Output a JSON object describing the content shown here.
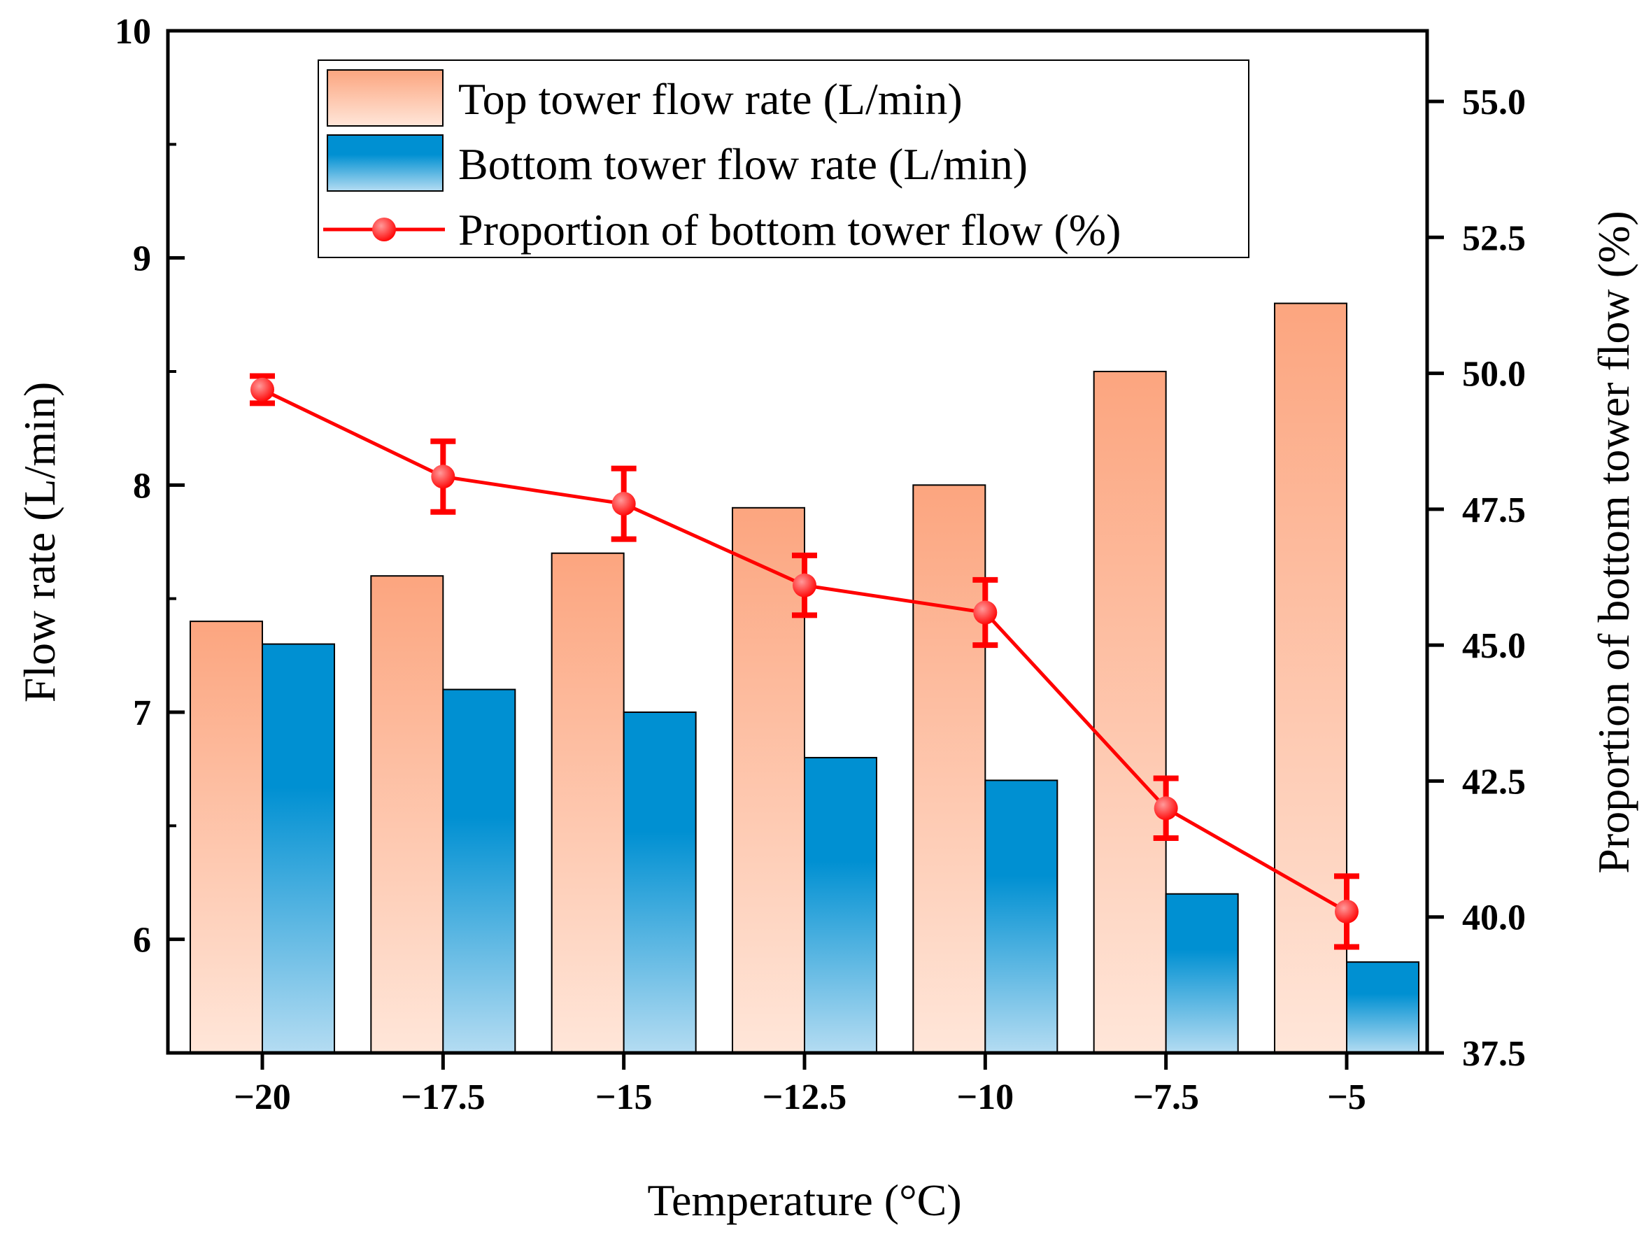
{
  "chart_data": {
    "type": "bar",
    "title": "",
    "xlabel": "Temperature (°C)",
    "ylabel": "Flow rate (L/min)",
    "y2label": "Proportion of bottom tower flow (%)",
    "categories": [
      "−20",
      "−17.5",
      "−15",
      "−12.5",
      "−10",
      "−7.5",
      "−5"
    ],
    "ylim": [
      5.5,
      10
    ],
    "yticks": [
      "6",
      "7",
      "8",
      "9",
      "10"
    ],
    "y2lim": [
      37.5,
      56.3
    ],
    "y2ticks": [
      "37.5",
      "40.0",
      "42.5",
      "45.0",
      "47.5",
      "50.0",
      "52.5",
      "55.0"
    ],
    "legend_position": "top-center",
    "grid": false,
    "series": [
      {
        "name": "Top tower flow rate (L/min)",
        "kind": "bar",
        "axis": "left",
        "values": [
          7.4,
          7.6,
          7.7,
          7.9,
          8.0,
          8.5,
          8.8
        ]
      },
      {
        "name": "Bottom tower flow rate (L/min)",
        "kind": "bar",
        "axis": "left",
        "values": [
          7.3,
          7.1,
          7.0,
          6.8,
          6.7,
          6.2,
          5.9
        ]
      },
      {
        "name": "Proportion of bottom tower flow (%)",
        "kind": "line",
        "axis": "right",
        "values": [
          49.7,
          48.1,
          47.6,
          46.1,
          45.6,
          42.0,
          40.1
        ],
        "errors": [
          0.25,
          0.65,
          0.65,
          0.55,
          0.6,
          0.55,
          0.65
        ]
      }
    ],
    "colors": {
      "top_bar_top": "#fca57f",
      "top_bar_bottom": "#ffe6d9",
      "bottom_bar_top": "#0090d2",
      "bottom_bar_bottom": "#b4dcf2",
      "line": "#ff0000",
      "marker_highlight": "#ff9a9a"
    }
  }
}
